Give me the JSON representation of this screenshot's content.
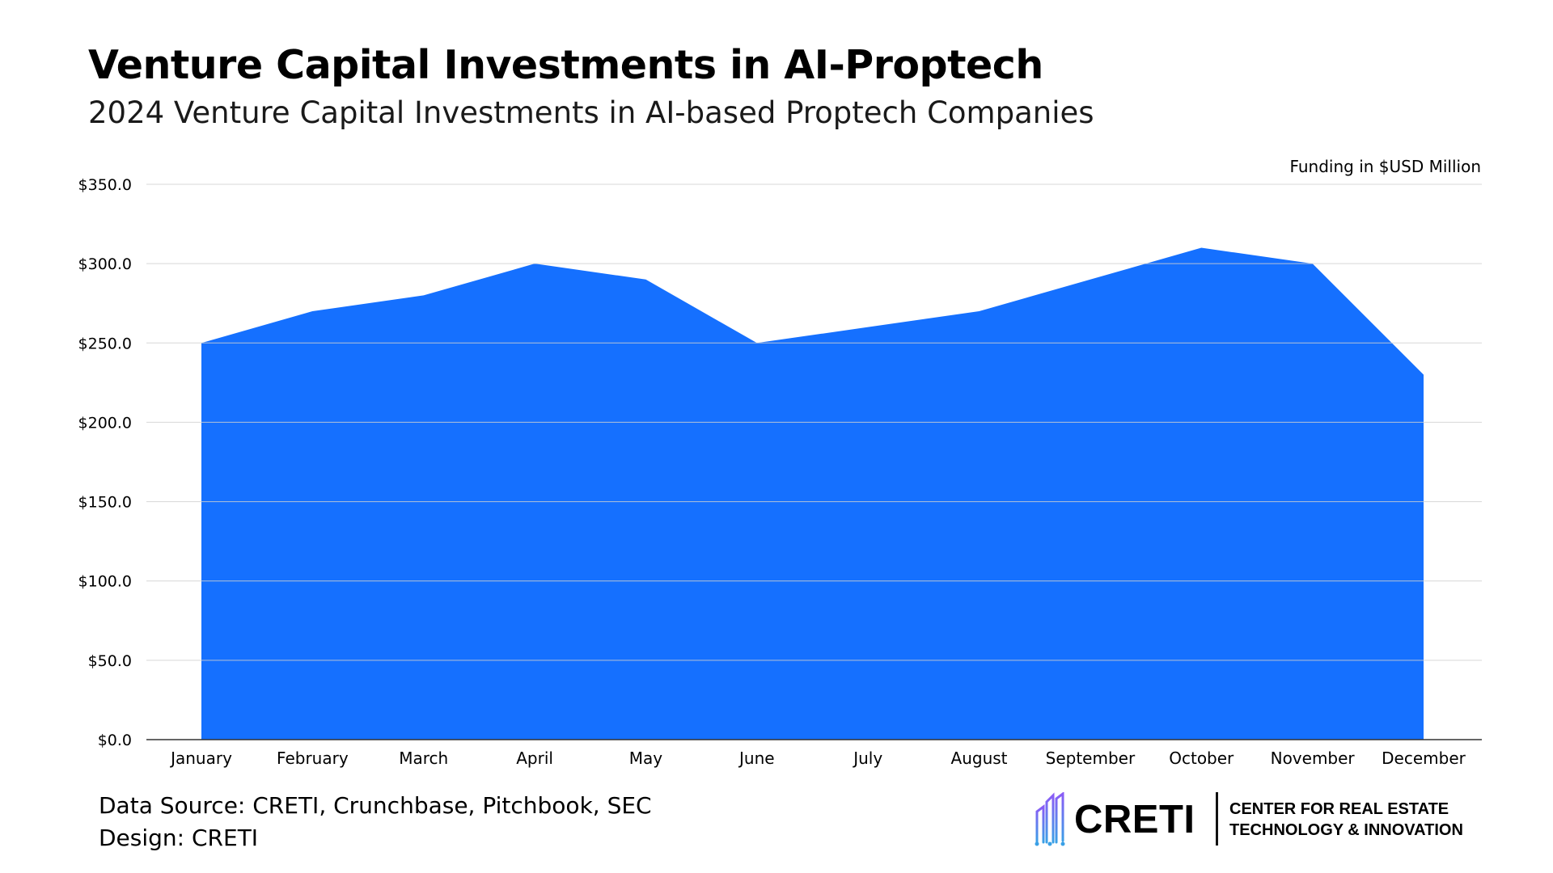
{
  "header": {
    "title": "Venture Capital Investments in AI-Proptech",
    "subtitle": "2024 Venture Capital Investments in AI-based Proptech Companies",
    "unit_note": "Funding in $USD Million"
  },
  "chart_data": {
    "type": "area",
    "categories": [
      "January",
      "February",
      "March",
      "April",
      "May",
      "June",
      "July",
      "August",
      "September",
      "October",
      "November",
      "December"
    ],
    "values": [
      250,
      270,
      280,
      300,
      290,
      250,
      260,
      270,
      290,
      310,
      300,
      230
    ],
    "y_ticks": [
      "$0.0",
      "$50.0",
      "$100.0",
      "$150.0",
      "$200.0",
      "$250.0",
      "$300.0",
      "$350.0"
    ],
    "ylim": [
      0,
      350
    ],
    "grid": true,
    "fill_color": "#1570ff",
    "grid_color": "#d0d0d0"
  },
  "footer": {
    "source_line": "Data Source: CRETI, Crunchbase, Pitchbook, SEC",
    "design_line": "Design: CRETI",
    "logo": {
      "icon": "building-circuit-icon",
      "wordmark": "CRETI",
      "line1": "CENTER FOR REAL ESTATE",
      "line2": "TECHNOLOGY & INNOVATION"
    }
  }
}
